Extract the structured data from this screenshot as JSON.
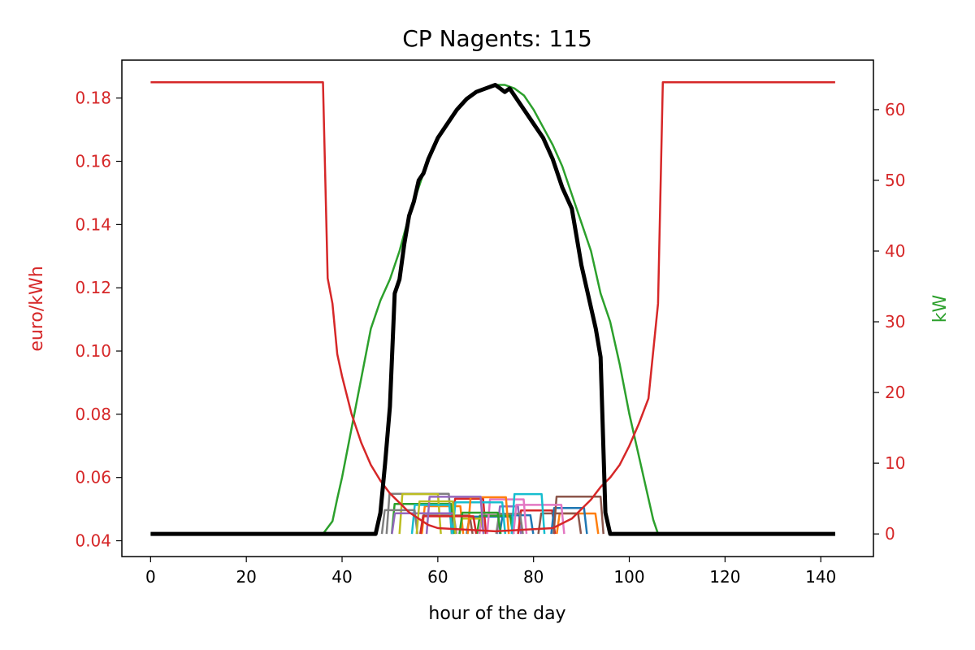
{
  "chart_data": {
    "type": "line",
    "title": "CP Nagents: 115",
    "xlabel": "hour of the day",
    "ylabel_left": "euro/kWh",
    "ylabel_right": "kW",
    "xlim": [
      -6,
      151
    ],
    "ylim_left": [
      0.035,
      0.192
    ],
    "ylim_right": [
      -3.2,
      67.0
    ],
    "x_ticks": [
      0,
      20,
      40,
      60,
      80,
      100,
      120,
      140
    ],
    "y_left_ticks": [
      0.04,
      0.06,
      0.08,
      0.1,
      0.12,
      0.14,
      0.16,
      0.18
    ],
    "y_right_ticks": [
      0,
      10,
      20,
      30,
      40,
      50,
      60
    ],
    "grid": false,
    "legend": "none",
    "colors": {
      "price": "#d62728",
      "pv": "#2ca02c",
      "total": "#000000",
      "left_axis": "#d62728",
      "right_axis": "#d62728",
      "right_label": "#2ca02c",
      "agents": [
        "#1f77b4",
        "#ff7f0e",
        "#2ca02c",
        "#d62728",
        "#9467bd",
        "#8c564b",
        "#e377c2",
        "#7f7f7f",
        "#bcbd22",
        "#17becf"
      ]
    },
    "series": [
      {
        "axis": "left",
        "color_key": "price",
        "x": [
          0,
          36,
          37,
          38,
          39,
          40,
          42,
          44,
          46,
          48,
          50,
          52,
          54,
          56,
          58,
          60,
          72,
          84,
          88,
          90,
          92,
          94,
          96,
          98,
          100,
          102,
          104,
          106,
          107,
          143
        ],
        "y": [
          0.185,
          0.185,
          0.123,
          0.115,
          0.099,
          0.092,
          0.08,
          0.071,
          0.064,
          0.059,
          0.055,
          0.052,
          0.049,
          0.047,
          0.045,
          0.044,
          0.043,
          0.044,
          0.047,
          0.05,
          0.053,
          0.057,
          0.06,
          0.064,
          0.07,
          0.077,
          0.085,
          0.115,
          0.185,
          0.185
        ]
      },
      {
        "axis": "right",
        "color_key": "pv",
        "x": [
          0,
          36,
          38,
          39,
          40,
          42,
          44,
          46,
          48,
          50,
          52,
          54,
          56,
          58,
          60,
          62,
          64,
          66,
          68,
          70,
          72,
          74,
          76,
          78,
          80,
          82,
          84,
          86,
          88,
          90,
          92,
          94,
          96,
          98,
          100,
          102,
          104,
          105,
          106,
          107,
          143
        ],
        "y": [
          0,
          0,
          1.8,
          5,
          8,
          15,
          22,
          29,
          33,
          36,
          40,
          45,
          49,
          53,
          56,
          58,
          60,
          61.5,
          62.5,
          63,
          63.5,
          63.5,
          63,
          62,
          60,
          57.5,
          55,
          52,
          48,
          44,
          40,
          34,
          30,
          24,
          17,
          11,
          5,
          2,
          0,
          0,
          0
        ]
      },
      {
        "axis": "right",
        "color_key": "total",
        "x": [
          0,
          47,
          48,
          49,
          50,
          51,
          52,
          53,
          54,
          55,
          56,
          57,
          58,
          60,
          62,
          64,
          66,
          68,
          70,
          72,
          73,
          74,
          75,
          76,
          78,
          80,
          82,
          84,
          86,
          88,
          89,
          90,
          91,
          92,
          93,
          94,
          95,
          96,
          143
        ],
        "y": [
          0,
          0,
          3,
          10,
          18,
          34,
          36,
          41,
          45,
          47,
          50,
          51,
          53,
          56,
          58,
          60,
          61.5,
          62.5,
          63,
          63.5,
          63,
          62.5,
          63,
          62,
          60,
          58,
          56,
          53,
          49,
          46,
          42,
          38,
          35,
          32,
          29,
          25,
          3,
          0,
          0
        ]
      }
    ],
    "agent_band": {
      "axis": "right",
      "count": 30,
      "x_range": [
        48,
        94
      ],
      "y_range": [
        0,
        5.8
      ],
      "base": 0,
      "seed": 7
    }
  }
}
